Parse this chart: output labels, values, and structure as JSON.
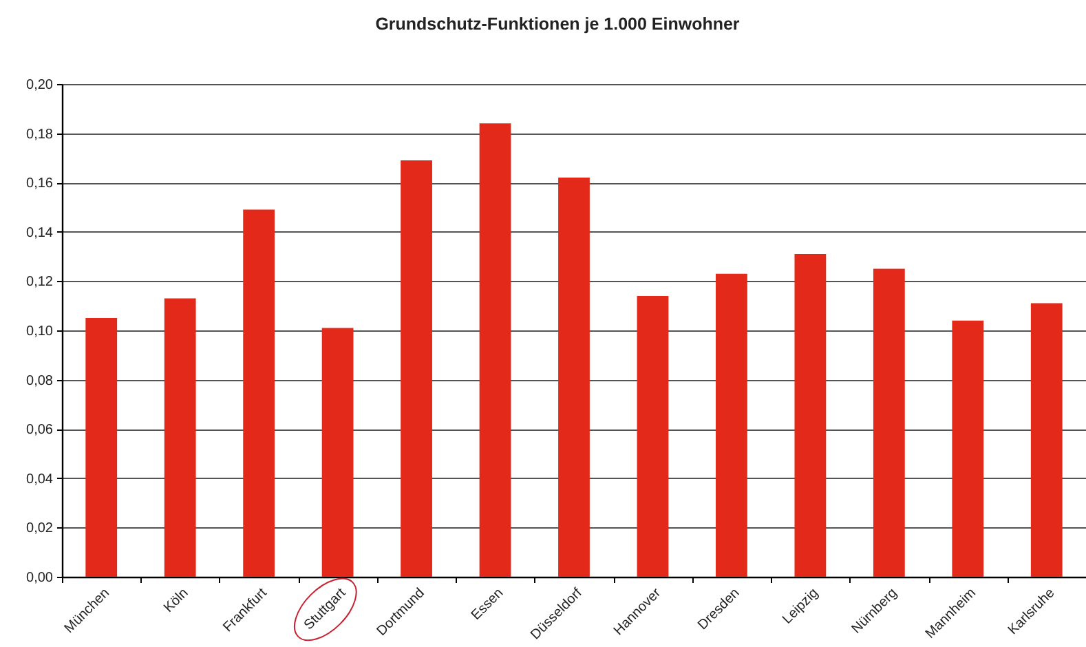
{
  "chart_data": {
    "type": "bar",
    "title": "Grundschutz-Funktionen je 1.000 Einwohner",
    "categories": [
      "München",
      "Köln",
      "Frankfurt",
      "Stuttgart",
      "Dortmund",
      "Essen",
      "Düsseldorf",
      "Hannover",
      "Dresden",
      "Leipzig",
      "Nürnberg",
      "Mannheim",
      "Karlsruhe"
    ],
    "values": [
      0.105,
      0.113,
      0.149,
      0.101,
      0.169,
      0.184,
      0.162,
      0.114,
      0.123,
      0.131,
      0.125,
      0.104,
      0.111
    ],
    "color": "#e32a1a",
    "ylim": [
      0,
      0.2
    ],
    "yticks": [
      {
        "value": 0,
        "label": "0,00"
      },
      {
        "value": 0.02,
        "label": "0,02"
      },
      {
        "value": 0.04,
        "label": "0,04"
      },
      {
        "value": 0.06,
        "label": "0,06"
      },
      {
        "value": 0.08,
        "label": "0,08"
      },
      {
        "value": 0.1,
        "label": "0,10"
      },
      {
        "value": 0.12,
        "label": "0,12"
      },
      {
        "value": 0.14,
        "label": "0,14"
      },
      {
        "value": 0.16,
        "label": "0,16"
      },
      {
        "value": 0.18,
        "label": "0,18"
      },
      {
        "value": 0.2,
        "label": "0,20"
      }
    ],
    "grid": true
  }
}
